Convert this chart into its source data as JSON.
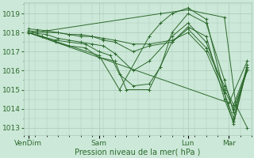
{
  "background_color": "#cce8d8",
  "plot_bg_color": "#cce8d8",
  "grid_color": "#aacbb8",
  "line_color": "#2d6a2d",
  "marker_color": "#2d6a2d",
  "ylabel_ticks": [
    1013,
    1014,
    1015,
    1016,
    1017,
    1018,
    1019
  ],
  "ylim": [
    1012.6,
    1019.6
  ],
  "xlabel": "Pression niveau de la mer( hPa )",
  "xlabel_fontsize": 7,
  "tick_fontsize": 6.5,
  "xtick_labels": [
    "VenDim",
    "Sam",
    "Lun",
    "Mar"
  ],
  "xtick_positions": [
    0.02,
    0.33,
    0.72,
    0.9
  ],
  "xlim": [
    0.0,
    1.0
  ],
  "series": [
    {
      "x": [
        0.02,
        0.9,
        0.98
      ],
      "y": [
        1018.0,
        1014.3,
        1016.5
      ]
    },
    {
      "x": [
        0.02,
        0.6,
        0.72,
        0.88,
        0.93,
        0.98
      ],
      "y": [
        1017.95,
        1019.0,
        1019.2,
        1018.8,
        1014.2,
        1013.0
      ]
    },
    {
      "x": [
        0.02,
        0.33,
        0.42,
        0.55,
        0.6,
        0.65,
        0.72,
        0.8,
        0.88,
        0.92,
        0.98
      ],
      "y": [
        1018.0,
        1016.8,
        1015.0,
        1017.8,
        1018.5,
        1019.0,
        1019.3,
        1018.7,
        1014.8,
        1013.5,
        1016.3
      ]
    },
    {
      "x": [
        0.02,
        0.08,
        0.14,
        0.2,
        0.27,
        0.33,
        0.4,
        0.45,
        0.55,
        0.65,
        0.72,
        0.8,
        0.88,
        0.92,
        0.98
      ],
      "y": [
        1018.0,
        1017.8,
        1017.5,
        1017.3,
        1017.2,
        1016.7,
        1016.5,
        1015.0,
        1015.0,
        1017.5,
        1018.3,
        1017.8,
        1014.5,
        1013.3,
        1016.2
      ]
    },
    {
      "x": [
        0.02,
        0.08,
        0.14,
        0.2,
        0.27,
        0.33,
        0.38,
        0.42,
        0.48,
        0.55,
        0.6,
        0.65,
        0.72,
        0.8,
        0.88,
        0.92,
        0.98
      ],
      "y": [
        1018.0,
        1017.8,
        1017.6,
        1017.5,
        1017.4,
        1017.0,
        1016.8,
        1015.8,
        1015.2,
        1015.3,
        1016.2,
        1018.0,
        1019.0,
        1018.5,
        1015.5,
        1013.8,
        1016.0
      ]
    },
    {
      "x": [
        0.02,
        0.06,
        0.1,
        0.15,
        0.2,
        0.25,
        0.3,
        0.35,
        0.4,
        0.48,
        0.55,
        0.65,
        0.72,
        0.8,
        0.88,
        0.92,
        0.98
      ],
      "y": [
        1018.1,
        1017.95,
        1017.9,
        1017.7,
        1017.6,
        1017.5,
        1017.4,
        1017.3,
        1016.9,
        1016.0,
        1016.5,
        1017.8,
        1018.5,
        1017.5,
        1015.0,
        1014.0,
        1016.0
      ]
    },
    {
      "x": [
        0.02,
        0.06,
        0.1,
        0.15,
        0.2,
        0.25,
        0.3,
        0.35,
        0.4,
        0.48,
        0.55,
        0.65,
        0.72,
        0.8,
        0.88,
        0.92,
        0.98
      ],
      "y": [
        1018.2,
        1018.15,
        1018.1,
        1018.0,
        1017.9,
        1017.8,
        1017.8,
        1017.6,
        1017.5,
        1017.0,
        1017.3,
        1017.5,
        1018.2,
        1017.2,
        1015.2,
        1014.2,
        1016.1
      ]
    },
    {
      "x": [
        0.02,
        0.06,
        0.1,
        0.15,
        0.2,
        0.25,
        0.3,
        0.35,
        0.4,
        0.48,
        0.55,
        0.65,
        0.72,
        0.8,
        0.88,
        0.92,
        0.98
      ],
      "y": [
        1018.1,
        1018.05,
        1018.0,
        1018.0,
        1017.9,
        1017.9,
        1017.8,
        1017.7,
        1017.6,
        1017.4,
        1017.4,
        1017.6,
        1018.0,
        1017.0,
        1014.8,
        1013.2,
        1016.2
      ]
    }
  ]
}
